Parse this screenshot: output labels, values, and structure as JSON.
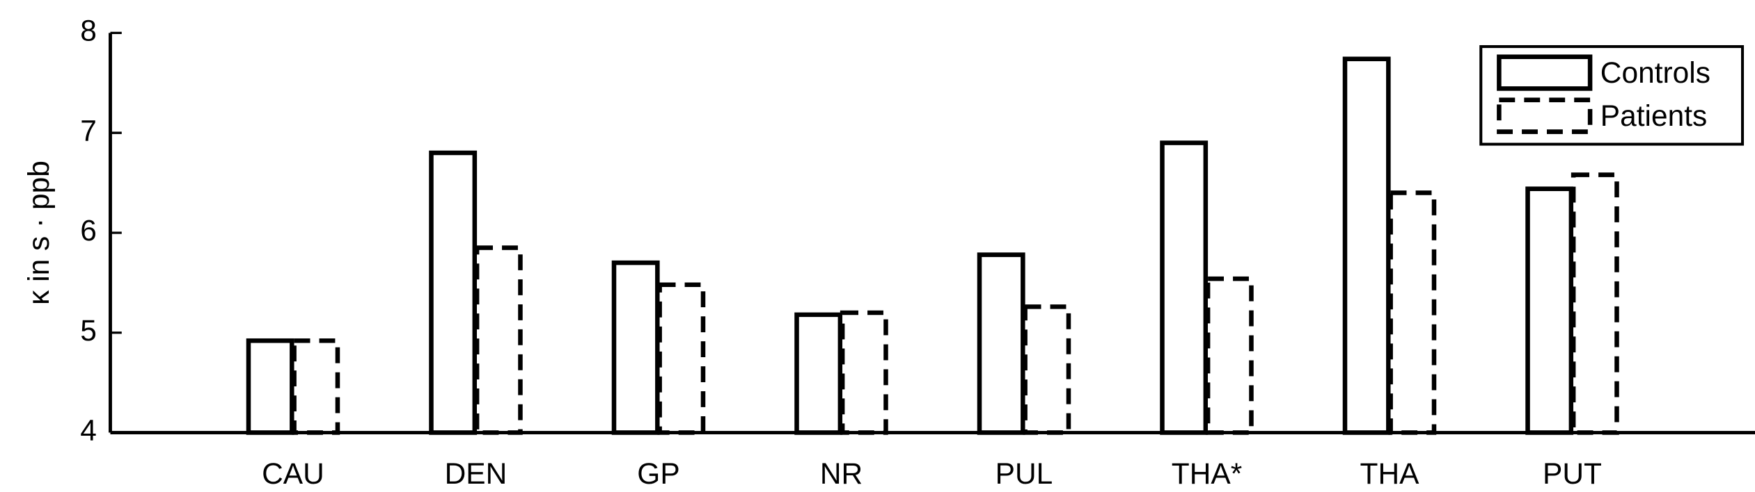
{
  "chart_data": {
    "type": "bar",
    "y_label": "κ in s · ppb",
    "categories": [
      "CAU",
      "DEN",
      "GP",
      "NR",
      "PUL",
      "THA*",
      "THA",
      "PUT"
    ],
    "series": [
      {
        "name": "Controls",
        "color": "#000000",
        "linestyle": "solid",
        "values": [
          4.92,
          6.8,
          5.7,
          5.18,
          5.78,
          6.9,
          7.74,
          6.44
        ]
      },
      {
        "name": "Patients",
        "color": "#000000",
        "linestyle": "dashed",
        "values": [
          4.92,
          5.85,
          5.48,
          5.2,
          5.26,
          5.54,
          6.4,
          6.58
        ]
      }
    ],
    "ylim": [
      4,
      8
    ],
    "yticks": [
      4,
      5,
      6,
      7,
      8
    ],
    "grid": false,
    "legend": "upper right"
  }
}
